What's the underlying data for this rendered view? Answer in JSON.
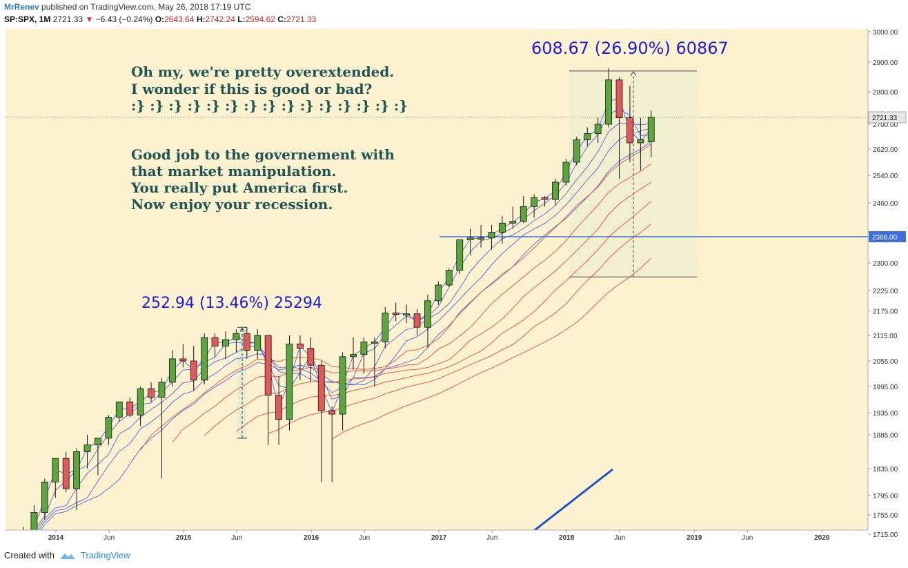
{
  "header": {
    "author": "MrRenev",
    "published_text": "published on TradingView.com, May 26, 2018 17:19 UTC",
    "symbol": "SP:SPX, 1M",
    "last": "2721.33",
    "change": "−6.43 (−0.24%)",
    "o_label": "O:",
    "o_value": "2643.64",
    "h_label": "H:",
    "h_value": "2742.24",
    "l_label": "L:",
    "l_value": "2594.62",
    "c_label": "C:",
    "c_value": "2721.33"
  },
  "footer": {
    "created_with": "Created with",
    "brand": "TradingView"
  },
  "colors": {
    "up": "#5ba63f",
    "down": "#e05a5a",
    "background": "#fdf2d0",
    "blue_ma": "#4f5fe0",
    "red_ma": "#e64a3a",
    "support_line": "#3d6fd8"
  },
  "chart_data": {
    "type": "candlestick",
    "symbol": "SP:SPX",
    "interval": "1M",
    "y_axis_ticks": [
      1715,
      1755,
      1795,
      1835,
      1885,
      1935,
      1995,
      2055,
      2115,
      2175,
      2225,
      2300,
      2368,
      2460,
      2540,
      2620,
      2700,
      2800,
      2900,
      3000
    ],
    "y_axis_labels": [
      "1715.00",
      "1755.00",
      "1795.00",
      "1835.00",
      "1885.00",
      "1935.00",
      "1995.00",
      "2055.00",
      "2115.00",
      "2175.00",
      "2225.00",
      "2300.00",
      "2368.00",
      "2460.00",
      "2540.00",
      "2620.00",
      "2700.00",
      "2800.00",
      "2900.00",
      "3000.00"
    ],
    "current_price_label": "2721.33",
    "support_label": "2368.00",
    "support_value": 2368,
    "x_axis_labels": [
      {
        "label": "2014",
        "year_index": 0
      },
      {
        "label": "Jun",
        "year_index": 5
      },
      {
        "label": "2015",
        "year_index": 12
      },
      {
        "label": "Jun",
        "year_index": 17
      },
      {
        "label": "2016",
        "year_index": 24
      },
      {
        "label": "Jun",
        "year_index": 29
      },
      {
        "label": "2017",
        "year_index": 36
      },
      {
        "label": "Jun",
        "year_index": 41
      },
      {
        "label": "2018",
        "year_index": 48
      },
      {
        "label": "Jun",
        "year_index": 53
      },
      {
        "label": "2019",
        "year_index": 60
      },
      {
        "label": "Jun",
        "year_index": 65
      },
      {
        "label": "2020",
        "year_index": 72
      }
    ],
    "candles": [
      {
        "o": 1700,
        "h": 1730,
        "l": 1695,
        "c": 1700
      },
      {
        "o": 1700,
        "h": 1775,
        "l": 1690,
        "c": 1760
      },
      {
        "o": 1760,
        "h": 1820,
        "l": 1745,
        "c": 1815
      },
      {
        "o": 1815,
        "h": 1850,
        "l": 1790,
        "c": 1850
      },
      {
        "o": 1850,
        "h": 1860,
        "l": 1800,
        "c": 1805
      },
      {
        "o": 1805,
        "h": 1865,
        "l": 1765,
        "c": 1860
      },
      {
        "o": 1860,
        "h": 1885,
        "l": 1835,
        "c": 1870
      },
      {
        "o": 1870,
        "h": 1880,
        "l": 1825,
        "c": 1880
      },
      {
        "o": 1880,
        "h": 1930,
        "l": 1870,
        "c": 1925
      },
      {
        "o": 1925,
        "h": 1960,
        "l": 1915,
        "c": 1960
      },
      {
        "o": 1960,
        "h": 1970,
        "l": 1925,
        "c": 1930
      },
      {
        "o": 1930,
        "h": 1995,
        "l": 1905,
        "c": 1990
      },
      {
        "o": 1990,
        "h": 2005,
        "l": 1960,
        "c": 1970
      },
      {
        "o": 1970,
        "h": 2015,
        "l": 1820,
        "c": 2005
      },
      {
        "o": 2005,
        "h": 2080,
        "l": 1995,
        "c": 2060
      },
      {
        "o": 2060,
        "h": 2095,
        "l": 2040,
        "c": 2055
      },
      {
        "o": 2055,
        "h": 2090,
        "l": 1985,
        "c": 2010
      },
      {
        "o": 2010,
        "h": 2120,
        "l": 2000,
        "c": 2110
      },
      {
        "o": 2110,
        "h": 2120,
        "l": 2065,
        "c": 2090
      },
      {
        "o": 2090,
        "h": 2125,
        "l": 2060,
        "c": 2105
      },
      {
        "o": 2105,
        "h": 2130,
        "l": 2075,
        "c": 2120
      },
      {
        "o": 2120,
        "h": 2135,
        "l": 2060,
        "c": 2080
      },
      {
        "o": 2080,
        "h": 2130,
        "l": 2060,
        "c": 2115
      },
      {
        "o": 2115,
        "h": 2115,
        "l": 1870,
        "c": 1975
      },
      {
        "o": 1975,
        "h": 2020,
        "l": 1870,
        "c": 1920
      },
      {
        "o": 1920,
        "h": 2115,
        "l": 1895,
        "c": 2095
      },
      {
        "o": 2095,
        "h": 2115,
        "l": 2010,
        "c": 2085
      },
      {
        "o": 2085,
        "h": 2110,
        "l": 2005,
        "c": 2045
      },
      {
        "o": 2045,
        "h": 2055,
        "l": 1815,
        "c": 1940
      },
      {
        "o": 1940,
        "h": 1950,
        "l": 1815,
        "c": 1932
      },
      {
        "o": 1932,
        "h": 2075,
        "l": 1895,
        "c": 2065
      },
      {
        "o": 2065,
        "h": 2110,
        "l": 2035,
        "c": 2070
      },
      {
        "o": 2070,
        "h": 2110,
        "l": 2025,
        "c": 2100
      },
      {
        "o": 2100,
        "h": 2110,
        "l": 1995,
        "c": 2100
      },
      {
        "o": 2100,
        "h": 2185,
        "l": 2085,
        "c": 2170
      },
      {
        "o": 2170,
        "h": 2195,
        "l": 2150,
        "c": 2168
      },
      {
        "o": 2168,
        "h": 2190,
        "l": 2145,
        "c": 2168
      },
      {
        "o": 2168,
        "h": 2180,
        "l": 2115,
        "c": 2135
      },
      {
        "o": 2135,
        "h": 2215,
        "l": 2085,
        "c": 2200
      },
      {
        "o": 2200,
        "h": 2250,
        "l": 2190,
        "c": 2240
      },
      {
        "o": 2240,
        "h": 2285,
        "l": 2235,
        "c": 2280
      },
      {
        "o": 2280,
        "h": 2360,
        "l": 2270,
        "c": 2360
      },
      {
        "o": 2360,
        "h": 2390,
        "l": 2320,
        "c": 2365
      },
      {
        "o": 2365,
        "h": 2400,
        "l": 2340,
        "c": 2365
      },
      {
        "o": 2365,
        "h": 2400,
        "l": 2335,
        "c": 2380
      },
      {
        "o": 2380,
        "h": 2425,
        "l": 2350,
        "c": 2405
      },
      {
        "o": 2405,
        "h": 2450,
        "l": 2390,
        "c": 2410
      },
      {
        "o": 2410,
        "h": 2480,
        "l": 2405,
        "c": 2450
      },
      {
        "o": 2450,
        "h": 2485,
        "l": 2420,
        "c": 2475
      },
      {
        "o": 2475,
        "h": 2480,
        "l": 2450,
        "c": 2470
      },
      {
        "o": 2470,
        "h": 2530,
        "l": 2455,
        "c": 2520
      },
      {
        "o": 2520,
        "h": 2590,
        "l": 2510,
        "c": 2580
      },
      {
        "o": 2580,
        "h": 2660,
        "l": 2570,
        "c": 2650
      },
      {
        "o": 2650,
        "h": 2690,
        "l": 2630,
        "c": 2670
      },
      {
        "o": 2670,
        "h": 2720,
        "l": 2640,
        "c": 2700
      },
      {
        "o": 2700,
        "h": 2880,
        "l": 2690,
        "c": 2840
      },
      {
        "o": 2840,
        "h": 2850,
        "l": 2530,
        "c": 2720
      },
      {
        "o": 2720,
        "h": 2820,
        "l": 2580,
        "c": 2640
      },
      {
        "o": 2640,
        "h": 2720,
        "l": 2555,
        "c": 2650
      },
      {
        "o": 2643.64,
        "h": 2742.24,
        "l": 2594.62,
        "c": 2721.33
      }
    ],
    "measure_2015": {
      "label": "252.94 (13.46%) 25294",
      "from": 1880,
      "to": 2135
    },
    "measure_2018": {
      "label": "608.67 (26.90%) 60867",
      "from": 2262,
      "to": 2870
    },
    "annotations": [
      "Oh my, we're pretty overextended.",
      "I wonder if this is good or bad?",
      ":} :} :} :} :} :} :} :} :} :} :} :} :} :} :}",
      "Good job to the governement with",
      "that market manipulation.",
      "You really put America first.",
      "Now enjoy your recession."
    ]
  }
}
